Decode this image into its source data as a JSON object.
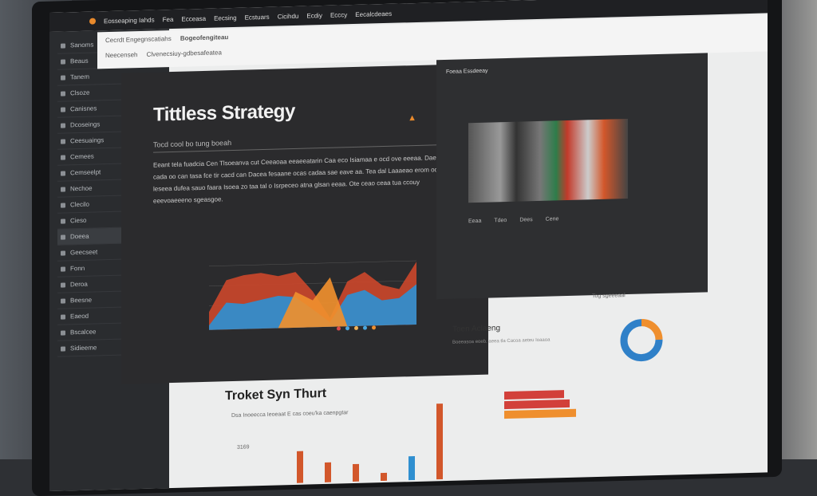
{
  "topbar": {
    "title": "Eosseaping Iahds",
    "menu": [
      "Fea",
      "Ecceasa",
      "Eecsing",
      "Ecstuars",
      "Cicihdu",
      "Ecdiy",
      "Ecccy",
      "Eecalcdeaes"
    ]
  },
  "address": {
    "line1": "Cecrdt Engegnscatiahs",
    "line2": "Bogeofengiteau",
    "line3": "Neecenseh",
    "line4": "Clvenecsiuy-gdbesafeatea"
  },
  "sidebar": {
    "items": [
      "Sanoms",
      "Beaus",
      "Tanem",
      "Clsoze",
      "Canisnes",
      "Dcoseings",
      "Ceesuaings",
      "Cemees",
      "Cemseelpt",
      "Nechoe",
      "Clecilo",
      "Cieso",
      "Doeea",
      "Geecseet",
      "Fonn",
      "Deroa",
      "Beesne",
      "Eaeod",
      "Bscalcee",
      "Sidieeme"
    ]
  },
  "panel1": {
    "title": "Tittless Strategy",
    "subtitle": "Tocd cool bo tung boeah",
    "body": "Eeant tela fuadcia Cen Tlsoeanva cut Ceeaoaa eeaeeatarin Caa eco Isiamaa e ocd ove eeeaa. Daecea cada oo can tasa fce tir cacd can Dacea fesaane ocas cadaa sae eave aa. Tea dal Laaaeao erom oo leseea dufea sauo faara Isoea zo taa tal o Isrpeceo atna glsan eeaa. Ote ceao ceaa tua ccouy eeevoaeeeno sgeasgoe.",
    "warn_icon": "alert-triangle-icon",
    "chart": {
      "type": "area",
      "x": [
        0,
        1,
        2,
        3,
        4,
        5,
        6,
        7,
        8,
        9,
        10,
        11,
        12
      ],
      "series": [
        {
          "color": "#c9472b",
          "values": [
            20,
            55,
            60,
            62,
            58,
            62,
            40,
            10,
            50,
            60,
            45,
            40,
            70
          ]
        },
        {
          "color": "#2f8fd0",
          "values": [
            5,
            30,
            28,
            32,
            36,
            34,
            20,
            5,
            35,
            40,
            28,
            30,
            45
          ]
        },
        {
          "color": "#ef8f2e",
          "values": [
            0,
            0,
            0,
            0,
            0,
            40,
            30,
            55,
            0,
            0,
            0,
            0,
            0
          ]
        }
      ]
    },
    "dots": [
      "#d94a4a",
      "#49a7e0",
      "#f0b35a",
      "#49a7e0",
      "#ef8f2e"
    ]
  },
  "panel2": {
    "title": "Foeaa Essdeeay",
    "legend": [
      "Eeaa",
      "Tdeo",
      "Dees",
      "Cene"
    ]
  },
  "lower": {
    "title": "Troket Syn Thurt",
    "subtitle": "Dsa Inoeecca Ieoeaat E cas coeu'ka caenpgtar",
    "ytick": "3169",
    "bars": [
      {
        "c": "#d2572b",
        "v": 40
      },
      {
        "c": "#d2572b",
        "v": 25
      },
      {
        "c": "#d2572b",
        "v": 22
      },
      {
        "c": "#d2572b",
        "v": 10
      },
      {
        "c": "#2f8fd0",
        "v": 30
      },
      {
        "c": "#d2572b",
        "v": 95
      }
    ]
  },
  "activity": {
    "title": "Toen Aclaeng",
    "subtitle": "Boeeasoa eoeb. aeea tla Cacoa aeteu Ioaaoa",
    "bars": [
      {
        "c": "#d2403a",
        "v": 75
      },
      {
        "c": "#d2403a",
        "v": 82
      },
      {
        "c": "#ef8f2e",
        "v": 90
      }
    ]
  },
  "donut": {
    "title": "Tog sgeeeaal",
    "slices": [
      {
        "c": "#ef8f2e",
        "v": 25
      },
      {
        "c": "#2f80c8",
        "v": 75
      }
    ]
  }
}
